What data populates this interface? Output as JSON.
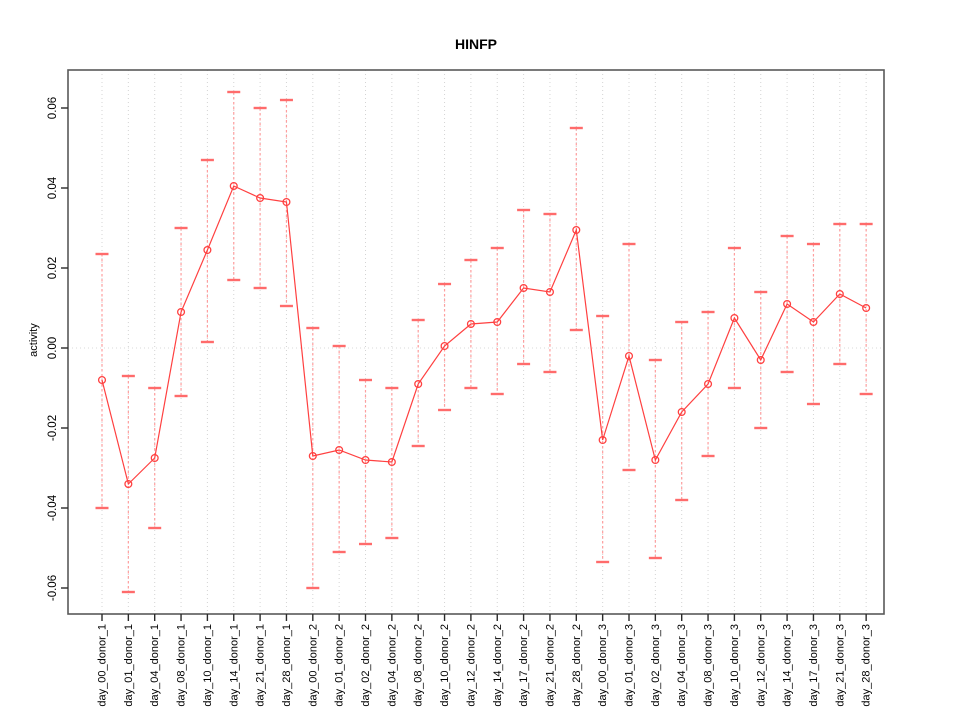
{
  "window": {
    "background": "#ffffff"
  },
  "chart_data": {
    "type": "line",
    "title": "HINFP",
    "xlabel": "",
    "ylabel": "activity",
    "ylim": [
      -0.066,
      0.07
    ],
    "grid": "vertical-dotted-per-category, dotted-zero-line",
    "legend_position": "none",
    "yticks": [
      {
        "value": 0.06,
        "label": "0.06"
      },
      {
        "value": 0.04,
        "label": "0.04"
      },
      {
        "value": 0.02,
        "label": "0.02"
      },
      {
        "value": 0.0,
        "label": "0.00"
      },
      {
        "value": -0.02,
        "label": "-0.02"
      },
      {
        "value": -0.04,
        "label": "-0.04"
      },
      {
        "value": -0.06,
        "label": "-0.06"
      }
    ],
    "categories": [
      "day_00_donor_1",
      "day_01_donor_1",
      "day_04_donor_1",
      "day_08_donor_1",
      "day_10_donor_1",
      "day_14_donor_1",
      "day_21_donor_1",
      "day_28_donor_1",
      "day_00_donor_2",
      "day_01_donor_2",
      "day_02_donor_2",
      "day_04_donor_2",
      "day_08_donor_2",
      "day_10_donor_2",
      "day_12_donor_2",
      "day_14_donor_2",
      "day_17_donor_2",
      "day_21_donor_2",
      "day_28_donor_2",
      "day_00_donor_3",
      "day_01_donor_3",
      "day_02_donor_3",
      "day_04_donor_3",
      "day_08_donor_3",
      "day_10_donor_3",
      "day_12_donor_3",
      "day_14_donor_3",
      "day_17_donor_3",
      "day_21_donor_3",
      "day_28_donor_3"
    ],
    "series": [
      {
        "name": "activity",
        "values": [
          -0.008,
          -0.034,
          -0.0275,
          0.009,
          0.0245,
          0.0405,
          0.0375,
          0.0365,
          -0.027,
          -0.0255,
          -0.028,
          -0.0285,
          -0.009,
          0.0005,
          0.006,
          0.0065,
          0.015,
          0.014,
          0.0295,
          -0.023,
          -0.002,
          -0.028,
          -0.016,
          -0.009,
          0.0075,
          -0.003,
          0.011,
          0.0065,
          0.0135,
          0.01
        ],
        "error_low": [
          -0.04,
          -0.061,
          -0.045,
          -0.012,
          0.0015,
          0.017,
          0.015,
          0.0105,
          -0.06,
          -0.051,
          -0.049,
          -0.0475,
          -0.0245,
          -0.0155,
          -0.01,
          -0.0115,
          -0.004,
          -0.006,
          0.0045,
          -0.0535,
          -0.0305,
          -0.0525,
          -0.038,
          -0.027,
          -0.01,
          -0.02,
          -0.006,
          -0.014,
          -0.004,
          -0.0115
        ],
        "error_high": [
          0.0235,
          -0.007,
          -0.01,
          0.03,
          0.047,
          0.064,
          0.06,
          0.062,
          0.005,
          0.0005,
          -0.008,
          -0.01,
          0.007,
          0.016,
          0.022,
          0.025,
          0.0345,
          0.0335,
          0.055,
          0.008,
          0.026,
          -0.003,
          0.0065,
          0.009,
          0.025,
          0.014,
          0.028,
          0.026,
          0.031,
          0.031
        ]
      }
    ],
    "colors": {
      "point_line": "#ff4040",
      "error_stem": "#ff9e9e",
      "error_cap": "#ff6b6b",
      "gridline": "#d4d4d4",
      "zero_line": "#dadada",
      "frame": "#595959",
      "tick": "#2a2a2a",
      "text": "#000000"
    }
  }
}
